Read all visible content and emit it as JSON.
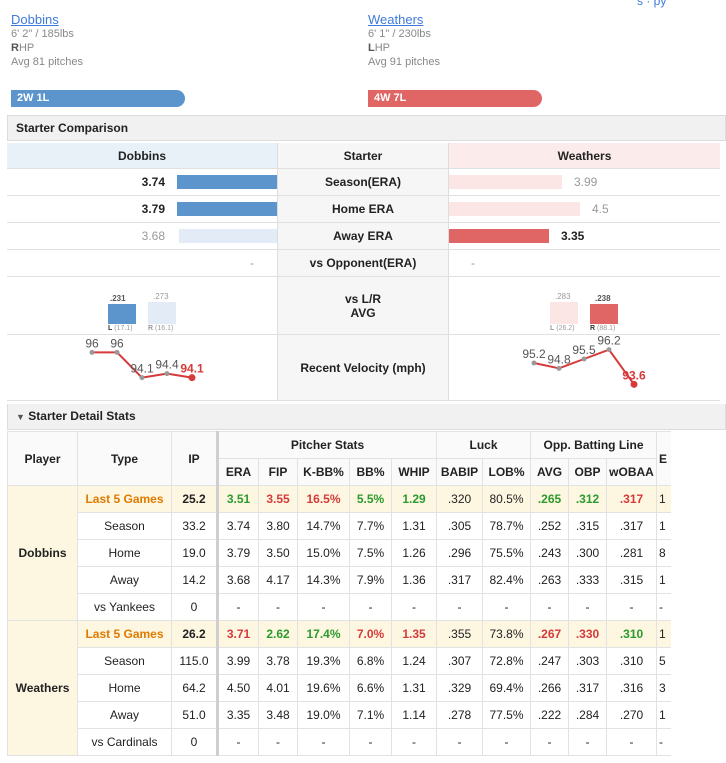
{
  "colors": {
    "home_blue": "#5b95cc",
    "away_red": "#e06666",
    "light_blue": "#e3ecf6",
    "light_red": "#fbe5e5",
    "green": "#2c9a2c",
    "red": "#d63a3a",
    "orange": "#e07a00"
  },
  "header": {
    "cut_link": "s · py",
    "left": {
      "name": "Dobbins",
      "size": "6' 2\" / 185lbs",
      "hand_letter": "R",
      "hand_rest": "HP",
      "avg": "Avg 81 pitches",
      "record": "2W 1L"
    },
    "right": {
      "name": "Weathers",
      "size": "6' 1\" / 230lbs",
      "hand_letter": "L",
      "hand_rest": "HP",
      "avg": "Avg 91 pitches",
      "record": "4W 7L"
    }
  },
  "comparison": {
    "title": "Starter Comparison",
    "col_left": "Dobbins",
    "col_mid": "Starter",
    "col_right": "Weathers",
    "rows": [
      {
        "label": "Season(ERA)",
        "left": "3.74",
        "right": "3.99",
        "left_wins": true,
        "left_pct": 1.0,
        "right_pct": 0.52
      },
      {
        "label": "Home ERA",
        "left": "3.79",
        "right": "4.5",
        "left_wins": true,
        "left_pct": 1.0,
        "right_pct": 0.6
      },
      {
        "label": "Away ERA",
        "left": "3.68",
        "right": "3.35",
        "left_wins": false,
        "left_pct": 0.98,
        "right_pct": 0.46
      },
      {
        "label": "vs Opponent(ERA)",
        "left": "-",
        "right": "-"
      }
    ],
    "lr": {
      "label_line1": "vs L/R",
      "label_line2": "AVG",
      "left": {
        "l_val": ".231",
        "l_sub": "L",
        "l_cnt": "(17.1)",
        "r_val": ".273",
        "r_sub": "R",
        "r_cnt": "(16.1)"
      },
      "right": {
        "l_val": ".283",
        "l_sub": "L",
        "l_cnt": "(26.2)",
        "r_val": ".238",
        "r_sub": "R",
        "r_cnt": "(88.1)"
      }
    },
    "velocity": {
      "label": "Recent Velocity (mph)",
      "left": [
        "96",
        "96",
        "94.1",
        "94.4",
        "94.1"
      ],
      "right": [
        "95.2",
        "94.8",
        "95.5",
        "96.2",
        "93.6"
      ]
    }
  },
  "detail": {
    "title": "Starter Detail Stats",
    "headers": {
      "player": "Player",
      "type": "Type",
      "ip": "IP",
      "pitcher_stats": "Pitcher Stats",
      "luck": "Luck",
      "opp": "Opp. Batting Line",
      "cut": "E"
    },
    "subheaders": [
      "ERA",
      "FIP",
      "K-BB%",
      "BB%",
      "WHIP",
      "BABIP",
      "LOB%",
      "AVG",
      "OBP",
      "wOBAA"
    ],
    "players": [
      {
        "name": "Dobbins",
        "rows": [
          {
            "type": "Last 5 Games",
            "ip": "25.2",
            "vals": [
              "3.51",
              "3.55",
              "16.5%",
              "5.5%",
              "1.29",
              ".320",
              "80.5%",
              ".265",
              ".312",
              ".317"
            ],
            "cut": "1"
          },
          {
            "type": "Season",
            "ip": "33.2",
            "vals": [
              "3.74",
              "3.80",
              "14.7%",
              "7.7%",
              "1.31",
              ".305",
              "78.7%",
              ".252",
              ".315",
              ".317"
            ],
            "cut": "1"
          },
          {
            "type": "Home",
            "ip": "19.0",
            "vals": [
              "3.79",
              "3.50",
              "15.0%",
              "7.5%",
              "1.26",
              ".296",
              "75.5%",
              ".243",
              ".300",
              ".281"
            ],
            "cut": "8"
          },
          {
            "type": "Away",
            "ip": "14.2",
            "vals": [
              "3.68",
              "4.17",
              "14.3%",
              "7.9%",
              "1.36",
              ".317",
              "82.4%",
              ".263",
              ".333",
              ".315"
            ],
            "cut": "1"
          },
          {
            "type": "vs Yankees",
            "ip": "0",
            "vals": [
              "-",
              "-",
              "-",
              "-",
              "-",
              "-",
              "-",
              "-",
              "-",
              "-"
            ],
            "cut": "-"
          }
        ]
      },
      {
        "name": "Weathers",
        "rows": [
          {
            "type": "Last 5 Games",
            "ip": "26.2",
            "vals": [
              "3.71",
              "2.62",
              "17.4%",
              "7.0%",
              "1.35",
              ".355",
              "73.8%",
              ".267",
              ".330",
              ".310"
            ],
            "cut": "1"
          },
          {
            "type": "Season",
            "ip": "115.0",
            "vals": [
              "3.99",
              "3.78",
              "19.3%",
              "6.8%",
              "1.24",
              ".307",
              "72.8%",
              ".247",
              ".303",
              ".310"
            ],
            "cut": "5"
          },
          {
            "type": "Home",
            "ip": "64.2",
            "vals": [
              "4.50",
              "4.01",
              "19.6%",
              "6.6%",
              "1.31",
              ".329",
              "69.4%",
              ".266",
              ".317",
              ".316"
            ],
            "cut": "3"
          },
          {
            "type": "Away",
            "ip": "51.0",
            "vals": [
              "3.35",
              "3.48",
              "19.0%",
              "7.1%",
              "1.14",
              ".278",
              "77.5%",
              ".222",
              ".284",
              ".270"
            ],
            "cut": "1"
          },
          {
            "type": "vs Cardinals",
            "ip": "0",
            "vals": [
              "-",
              "-",
              "-",
              "-",
              "-",
              "-",
              "-",
              "-",
              "-",
              "-"
            ],
            "cut": "-"
          }
        ]
      }
    ],
    "highlight_colors": {
      "Dobbins": [
        "g",
        "r",
        "r",
        "g",
        "g",
        "",
        "",
        "g",
        "g",
        "r"
      ],
      "Weathers": [
        "r",
        "g",
        "g",
        "r",
        "r",
        "",
        "",
        "r",
        "r",
        "g"
      ]
    }
  }
}
